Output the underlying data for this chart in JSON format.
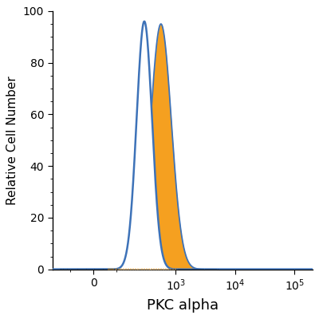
{
  "xlabel": "PKC alpha",
  "ylabel": "Relative Cell Number",
  "ylim": [
    0,
    100
  ],
  "background_color": "#ffffff",
  "blue_color": "#3d72b8",
  "orange_color": "#f5a020",
  "blue_peak_log": 2.47,
  "blue_sigma": 0.13,
  "blue_peak_height": 96,
  "orange_peak_log": 2.75,
  "orange_sigma": 0.175,
  "orange_peak_height": 95,
  "ytick_positions": [
    0,
    20,
    40,
    60,
    80,
    100
  ],
  "xlabel_fontsize": 13,
  "ylabel_fontsize": 11,
  "tick_fontsize": 10,
  "linthresh": 100,
  "linscale": 0.35,
  "xlim_left": -200,
  "xlim_right": 200000
}
